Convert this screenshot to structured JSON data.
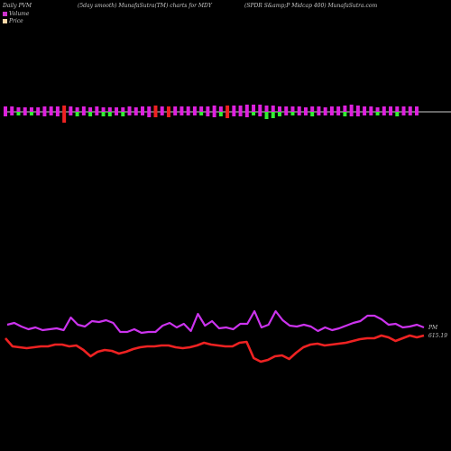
{
  "header": {
    "left": "Daily PVM",
    "smooth": "(5day smooth) MunafaSutra(TM) charts for MDY",
    "right": "(SPDR S&amp;P Midcap 400) MunafaSutra.com"
  },
  "legend": {
    "volume_label": "Volume",
    "price_label": "Price",
    "volume_color": "#cc33cc",
    "price_color": "#ffd8a8"
  },
  "colors": {
    "bar_up": "#dd22dd",
    "bar_down": "#33ee33",
    "bar_red": "#ee2222",
    "baseline": "#cccccc",
    "pvm_line": "#cc33ee",
    "price_line": "#ee2222"
  },
  "chart_data": {
    "type": "bar+line",
    "pvm_end_label": "PM",
    "price_end_label": "615.19",
    "volume_bars": [
      {
        "up": 6,
        "down": 5,
        "c": "m"
      },
      {
        "up": 6,
        "down": 4,
        "c": "m"
      },
      {
        "up": 5,
        "down": 4,
        "c": "g"
      },
      {
        "up": 5,
        "down": 4,
        "c": "m"
      },
      {
        "up": 5,
        "down": 4,
        "c": "g"
      },
      {
        "up": 5,
        "down": 4,
        "c": "m"
      },
      {
        "up": 6,
        "down": 5,
        "c": "m"
      },
      {
        "up": 6,
        "down": 4,
        "c": "m"
      },
      {
        "up": 6,
        "down": 5,
        "c": "m"
      },
      {
        "up": 7,
        "down": 12,
        "c": "r"
      },
      {
        "up": 6,
        "down": 4,
        "c": "m"
      },
      {
        "up": 5,
        "down": 5,
        "c": "g"
      },
      {
        "up": 6,
        "down": 4,
        "c": "m"
      },
      {
        "up": 5,
        "down": 5,
        "c": "g"
      },
      {
        "up": 6,
        "down": 4,
        "c": "m"
      },
      {
        "up": 5,
        "down": 5,
        "c": "g"
      },
      {
        "up": 5,
        "down": 5,
        "c": "g"
      },
      {
        "up": 5,
        "down": 4,
        "c": "m"
      },
      {
        "up": 5,
        "down": 5,
        "c": "g"
      },
      {
        "up": 6,
        "down": 4,
        "c": "m"
      },
      {
        "up": 5,
        "down": 4,
        "c": "m"
      },
      {
        "up": 6,
        "down": 4,
        "c": "m"
      },
      {
        "up": 6,
        "down": 6,
        "c": "m"
      },
      {
        "up": 7,
        "down": 6,
        "c": "r"
      },
      {
        "up": 6,
        "down": 4,
        "c": "m"
      },
      {
        "up": 6,
        "down": 6,
        "c": "r"
      },
      {
        "up": 6,
        "down": 4,
        "c": "m"
      },
      {
        "up": 6,
        "down": 4,
        "c": "m"
      },
      {
        "up": 6,
        "down": 4,
        "c": "m"
      },
      {
        "up": 6,
        "down": 4,
        "c": "m"
      },
      {
        "up": 6,
        "down": 4,
        "c": "g"
      },
      {
        "up": 6,
        "down": 5,
        "c": "m"
      },
      {
        "up": 7,
        "down": 6,
        "c": "m"
      },
      {
        "up": 6,
        "down": 5,
        "c": "g"
      },
      {
        "up": 7,
        "down": 7,
        "c": "r"
      },
      {
        "up": 7,
        "down": 5,
        "c": "m"
      },
      {
        "up": 7,
        "down": 5,
        "c": "m"
      },
      {
        "up": 8,
        "down": 6,
        "c": "m"
      },
      {
        "up": 8,
        "down": 4,
        "c": "g"
      },
      {
        "up": 8,
        "down": 5,
        "c": "m"
      },
      {
        "up": 7,
        "down": 8,
        "c": "g"
      },
      {
        "up": 7,
        "down": 7,
        "c": "g"
      },
      {
        "up": 6,
        "down": 5,
        "c": "g"
      },
      {
        "up": 6,
        "down": 4,
        "c": "m"
      },
      {
        "up": 6,
        "down": 4,
        "c": "g"
      },
      {
        "up": 6,
        "down": 4,
        "c": "m"
      },
      {
        "up": 5,
        "down": 4,
        "c": "m"
      },
      {
        "up": 6,
        "down": 5,
        "c": "g"
      },
      {
        "up": 6,
        "down": 4,
        "c": "m"
      },
      {
        "up": 5,
        "down": 4,
        "c": "m"
      },
      {
        "up": 6,
        "down": 4,
        "c": "m"
      },
      {
        "up": 6,
        "down": 4,
        "c": "m"
      },
      {
        "up": 7,
        "down": 5,
        "c": "g"
      },
      {
        "up": 8,
        "down": 5,
        "c": "m"
      },
      {
        "up": 7,
        "down": 5,
        "c": "m"
      },
      {
        "up": 6,
        "down": 4,
        "c": "m"
      },
      {
        "up": 6,
        "down": 4,
        "c": "m"
      },
      {
        "up": 5,
        "down": 4,
        "c": "g"
      },
      {
        "up": 6,
        "down": 4,
        "c": "m"
      },
      {
        "up": 6,
        "down": 4,
        "c": "m"
      },
      {
        "up": 6,
        "down": 5,
        "c": "g"
      },
      {
        "up": 6,
        "down": 4,
        "c": "m"
      },
      {
        "up": 6,
        "down": 4,
        "c": "m"
      },
      {
        "up": 6,
        "down": 4,
        "c": "m"
      }
    ],
    "pvm_line": [
      360,
      358,
      362,
      365,
      363,
      366,
      365,
      364,
      366,
      352,
      360,
      362,
      356,
      357,
      355,
      358,
      368,
      368,
      365,
      369,
      368,
      368,
      361,
      358,
      363,
      359,
      367,
      348,
      361,
      356,
      364,
      363,
      365,
      359,
      359,
      345,
      363,
      360,
      345,
      355,
      361,
      362,
      360,
      362,
      367,
      363,
      366,
      364,
      361,
      358,
      356,
      350,
      350,
      354,
      360,
      359,
      363,
      362,
      360,
      363
    ],
    "price_line": [
      375,
      384,
      385,
      386,
      385,
      384,
      384,
      382,
      382,
      384,
      383,
      388,
      395,
      390,
      388,
      389,
      392,
      390,
      387,
      385,
      384,
      384,
      383,
      383,
      385,
      386,
      385,
      383,
      380,
      382,
      383,
      384,
      384,
      380,
      379,
      397,
      401,
      399,
      395,
      394,
      398,
      391,
      385,
      382,
      381,
      383,
      382,
      381,
      380,
      378,
      376,
      375,
      375,
      372,
      374,
      378,
      375,
      372,
      374,
      372
    ]
  }
}
